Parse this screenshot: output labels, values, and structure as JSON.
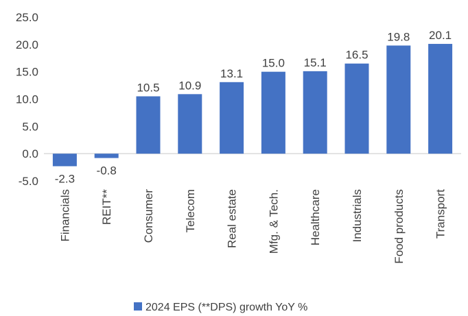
{
  "chart_data": {
    "type": "bar",
    "categories": [
      "Financials",
      "REIT**",
      "Consumer",
      "Telecom",
      "Real estate",
      "Mfg. & Tech.",
      "Healthcare",
      "Industrials",
      "Food products",
      "Transport"
    ],
    "series": [
      {
        "name": "2024 EPS (**DPS) growth YoY %",
        "values": [
          -2.3,
          -0.8,
          10.5,
          10.9,
          13.1,
          15.0,
          15.1,
          16.5,
          19.8,
          20.1
        ]
      }
    ],
    "data_labels": [
      "-2.3",
      "-0.8",
      "10.5",
      "10.9",
      "13.1",
      "15.0",
      "15.1",
      "16.5",
      "19.8",
      "20.1"
    ],
    "ylim": [
      -5,
      25
    ],
    "yticks": [
      "-5.0",
      "0.0",
      "5.0",
      "10.0",
      "15.0",
      "20.0",
      "25.0"
    ],
    "ytick_values": [
      -5,
      0,
      5,
      10,
      15,
      20,
      25
    ],
    "grid": false,
    "legend_position": "bottom",
    "colors": {
      "bar": "#4472C4",
      "axis": "#d9d9d9",
      "text": "#404040"
    }
  }
}
